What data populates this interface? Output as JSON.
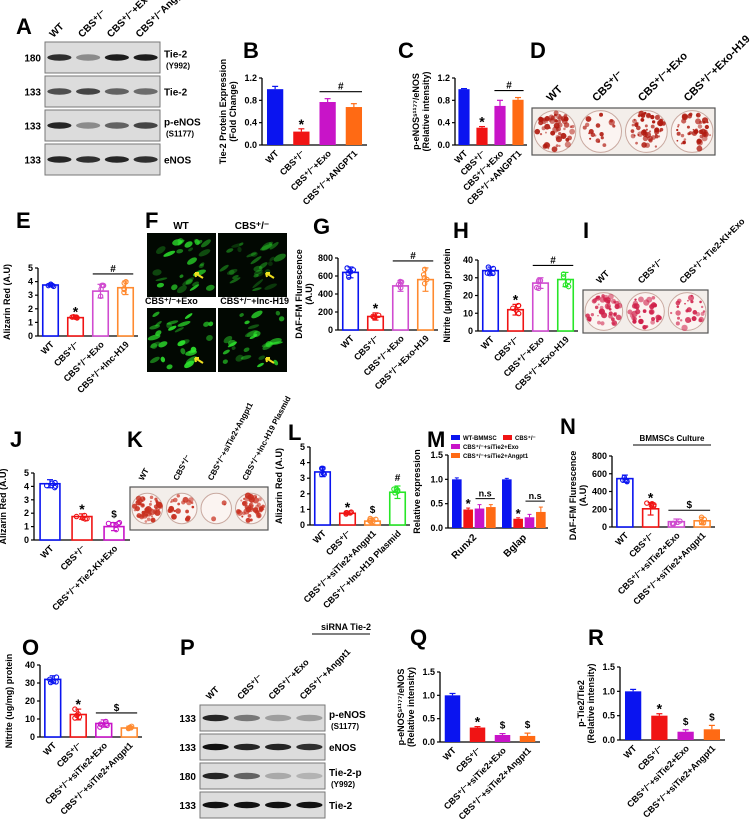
{
  "panel_letters": [
    "A",
    "B",
    "C",
    "D",
    "E",
    "F",
    "G",
    "H",
    "I",
    "J",
    "K",
    "L",
    "M",
    "N",
    "O",
    "P",
    "Q",
    "R"
  ],
  "colors": {
    "blue": "#0a14f0",
    "red": "#f01414",
    "magenta": "#c814c8",
    "orange": "#ff6a14",
    "green": "#28e628",
    "open_magenta": "#d04cd0",
    "open_orange": "#ff8a30"
  },
  "blots": [
    {
      "panel": "A",
      "lanes": [
        "WT",
        "CBS⁺/⁻",
        "CBS⁺/⁻+Exo",
        "CBS⁺/⁻Angpt1"
      ],
      "rows": [
        {
          "mw": "180",
          "label": "Tie-2",
          "sub": "(Y992)",
          "band_intensity": [
            0.85,
            0.4,
            0.95,
            0.95
          ]
        },
        {
          "mw": "133",
          "label": "Tie-2",
          "sub": "",
          "band_intensity": [
            0.7,
            0.75,
            0.6,
            0.55
          ]
        },
        {
          "mw": "133",
          "label": "p-eNOS",
          "sub": "(S1177)",
          "band_intensity": [
            0.9,
            0.4,
            0.6,
            0.75
          ]
        },
        {
          "mw": "133",
          "label": "eNOS",
          "sub": "",
          "band_intensity": [
            0.9,
            0.85,
            0.9,
            0.85
          ]
        }
      ]
    },
    {
      "panel": "P",
      "header": "siRNA Tie-2",
      "lanes": [
        "WT",
        "CBS⁺/⁻",
        "CBS⁺/⁻+Exo",
        "CBS⁺/⁻+Angpt1"
      ],
      "rows": [
        {
          "mw": "133",
          "label": "p-eNOS",
          "sub": "(S1177)",
          "band_intensity": [
            0.9,
            0.5,
            0.3,
            0.3
          ]
        },
        {
          "mw": "133",
          "label": "eNOS",
          "sub": "",
          "band_intensity": [
            1,
            0.9,
            0.9,
            0.85
          ]
        },
        {
          "mw": "180",
          "label": "Tie-2-p",
          "sub": "(Y992)",
          "band_intensity": [
            0.9,
            0.6,
            0.25,
            0.2
          ]
        },
        {
          "mw": "133",
          "label": "Tie-2",
          "sub": "",
          "band_intensity": [
            1,
            1,
            1,
            1
          ]
        }
      ]
    }
  ],
  "stain_images": [
    {
      "panel": "D",
      "labels": [
        "WT",
        "CBS⁺/⁻",
        "CBS⁺/⁻+Exo",
        "CBS⁺/⁻+Exo-H19"
      ],
      "stain_level": [
        0.85,
        0.3,
        0.85,
        0.8
      ],
      "stain_color": "#b01a10"
    },
    {
      "panel": "I",
      "labels": [
        "WT",
        "CBS⁺/⁻",
        "CBS⁺/⁻+Tie2-KI+Exo"
      ],
      "stain_level": [
        0.8,
        0.55,
        0.45
      ],
      "stain_color": "#d0204a"
    },
    {
      "panel": "K",
      "labels": [
        "WT",
        "CBS⁺/⁻",
        "CBS⁺/⁻+siTie2+Angpt1",
        "CBS⁺/⁻+lnc-H19 Plasmid"
      ],
      "stain_level": [
        0.9,
        0.35,
        0.05,
        0.75
      ],
      "stain_color": "#c83020"
    }
  ],
  "fluorescence": {
    "panel": "F",
    "tiles": [
      "WT",
      "CBS⁺/⁻",
      "CBS⁺/⁻+Exo",
      "CBS⁺/⁻+lnc-H19"
    ],
    "brightness": [
      0.85,
      0.45,
      0.9,
      0.85
    ]
  },
  "chart_data": [
    {
      "panel": "B",
      "type": "bar",
      "style": "filled",
      "categories": [
        "WT",
        "CBS⁺/⁻",
        "CBS⁺/⁻+Exo",
        "CBS⁺/⁻+ANGPT1"
      ],
      "values": [
        1.0,
        0.24,
        0.77,
        0.68
      ],
      "errors": [
        0.05,
        0.05,
        0.06,
        0.06
      ],
      "colors": [
        "#0a14f0",
        "#f01414",
        "#c814c8",
        "#ff6a14"
      ],
      "ylim": [
        0,
        1.2
      ],
      "yticks": [
        "0.0",
        "0.4",
        "0.8",
        "1.2"
      ],
      "ylabel": [
        "Tie-2 Protein Expression",
        "(Fold Change)"
      ],
      "annotations": [
        {
          "text": "*",
          "over": [
            1
          ]
        },
        {
          "text": "#",
          "over": [
            2,
            3
          ],
          "line": true
        }
      ]
    },
    {
      "panel": "C",
      "type": "bar",
      "style": "filled",
      "categories": [
        "WT",
        "CBS⁺/⁻",
        "CBS⁺/⁻+Exo",
        "CBS⁺/⁻+ANGPT1"
      ],
      "values": [
        1.0,
        0.31,
        0.7,
        0.81
      ],
      "errors": [
        0.01,
        0.02,
        0.1,
        0.04
      ],
      "colors": [
        "#0a14f0",
        "#f01414",
        "#c814c8",
        "#ff6a14"
      ],
      "ylim": [
        0,
        1.2
      ],
      "yticks": [
        "0.0",
        "0.4",
        "0.8",
        "1.2"
      ],
      "ylabel": [
        "p-eNOSˢ¹¹⁷⁷/eNOS",
        "(Relative intensity)"
      ],
      "annotations": [
        {
          "text": "*",
          "over": [
            1
          ]
        },
        {
          "text": "#",
          "over": [
            2,
            3
          ],
          "line": true
        }
      ]
    },
    {
      "panel": "E",
      "type": "bar",
      "style": "open",
      "categories": [
        "WT",
        "CBS⁺/⁻",
        "CBS⁺/⁻+Exo",
        "CBS⁺/⁻+lnc-H19"
      ],
      "values": [
        3.75,
        1.35,
        3.3,
        3.55
      ],
      "errors": [
        0.1,
        0.1,
        0.5,
        0.5
      ],
      "colors": [
        "#0a14f0",
        "#f01414",
        "#d04cd0",
        "#ff8a30"
      ],
      "ylim": [
        0,
        5
      ],
      "yticks": [
        "0",
        "1",
        "2",
        "3",
        "4",
        "5"
      ],
      "ylabel": [
        "Alizarin Red (A.U)"
      ],
      "annotations": [
        {
          "text": "*",
          "over": [
            1
          ]
        },
        {
          "text": "#",
          "over": [
            2,
            3
          ],
          "line": true
        }
      ]
    },
    {
      "panel": "G",
      "type": "bar",
      "style": "open",
      "categories": [
        "WT",
        "CBS⁺/⁻",
        "CBS⁺/⁻+Exo",
        "CBS⁺/⁻+Exo-H19"
      ],
      "values": [
        640,
        150,
        490,
        560
      ],
      "errors": [
        60,
        40,
        60,
        130
      ],
      "colors": [
        "#0a14f0",
        "#f01414",
        "#d04cd0",
        "#ff8a30"
      ],
      "ylim": [
        0,
        800
      ],
      "yticks": [
        "0",
        "200",
        "400",
        "600",
        "800"
      ],
      "ylabel": [
        "DAF-FM Flurescence",
        "(A.U)"
      ],
      "annotations": [
        {
          "text": "*",
          "over": [
            1
          ]
        },
        {
          "text": "#",
          "over": [
            2,
            3
          ],
          "line": true
        }
      ]
    },
    {
      "panel": "H",
      "type": "bar",
      "style": "open",
      "categories": [
        "WT",
        "CBS⁺/⁻",
        "CBS⁺/⁻+Exo",
        "CBS⁺/⁻+Exo-H19"
      ],
      "values": [
        34,
        12,
        27,
        29
      ],
      "errors": [
        2,
        3,
        3,
        4
      ],
      "colors": [
        "#0a14f0",
        "#f01414",
        "#d04cd0",
        "#28e628"
      ],
      "ylim": [
        0,
        40
      ],
      "yticks": [
        "0",
        "10",
        "20",
        "30",
        "40"
      ],
      "ylabel": [
        "Nitrite (µg/mg) protein"
      ],
      "annotations": [
        {
          "text": "*",
          "over": [
            1
          ]
        },
        {
          "text": "#",
          "over": [
            2,
            3
          ],
          "line": true
        }
      ]
    },
    {
      "panel": "J",
      "type": "bar",
      "style": "open",
      "categories": [
        "WT",
        "CBS⁺/⁻",
        "CBS⁺/⁻+Tie2-KI+Exo"
      ],
      "values": [
        4.2,
        1.75,
        1.0
      ],
      "errors": [
        0.3,
        0.2,
        0.3
      ],
      "colors": [
        "#0a14f0",
        "#f01414",
        "#c814c8"
      ],
      "ylim": [
        0,
        5
      ],
      "yticks": [
        "0",
        "1",
        "2",
        "3",
        "4",
        "5"
      ],
      "ylabel": [
        "Alizarin Red (A.U)"
      ],
      "annotations": [
        {
          "text": "*",
          "over": [
            1
          ]
        },
        {
          "text": "$",
          "over": [
            2
          ]
        }
      ]
    },
    {
      "panel": "L",
      "type": "bar",
      "style": "open",
      "categories": [
        "WT",
        "CBS⁺/⁻",
        "CBS⁺/⁻+siTie2+Angpt1",
        "CBS⁺/⁻+lnc-H19 Plasmid"
      ],
      "values": [
        3.4,
        0.75,
        0.25,
        2.1
      ],
      "errors": [
        0.3,
        0.08,
        0.2,
        0.4
      ],
      "colors": [
        "#0a14f0",
        "#f01414",
        "#ff8a30",
        "#28e628"
      ],
      "ylim": [
        0,
        5
      ],
      "yticks": [
        "0",
        "1",
        "2",
        "3",
        "4",
        "5"
      ],
      "ylabel": [
        "Alizarin Red (A.U)"
      ],
      "annotations": [
        {
          "text": "*",
          "over": [
            1
          ]
        },
        {
          "text": "$",
          "over": [
            2
          ]
        },
        {
          "text": "#",
          "over": [
            3
          ]
        }
      ]
    },
    {
      "panel": "M",
      "type": "bar",
      "style": "grouped",
      "categories": [
        "Runx2",
        "Bglap"
      ],
      "series": [
        {
          "name": "WT-BMMSC",
          "values": [
            1.0,
            1.0
          ],
          "errors": [
            0.03,
            0.02
          ],
          "color": "#0a14f0"
        },
        {
          "name": "CBS⁺/⁻",
          "values": [
            0.38,
            0.19
          ],
          "errors": [
            0.03,
            0.02
          ],
          "color": "#f01414"
        },
        {
          "name": "CBS⁺/⁻+siTie2+Exo",
          "values": [
            0.4,
            0.22
          ],
          "errors": [
            0.08,
            0.06
          ],
          "color": "#c814c8"
        },
        {
          "name": "CBS⁺/⁻+siTie2+Angpt1",
          "values": [
            0.43,
            0.33
          ],
          "errors": [
            0.05,
            0.1
          ],
          "color": "#ff6a14"
        }
      ],
      "ylim": [
        0,
        1.5
      ],
      "yticks": [
        "0.0",
        "0.5",
        "1.0",
        "1.5"
      ],
      "ylabel": [
        "Relative expression"
      ],
      "legend": "top",
      "annotations": [
        {
          "text": "*",
          "group": 0,
          "over": [
            1
          ]
        },
        {
          "text": "n.s",
          "group": 0,
          "over": [
            2,
            3
          ],
          "line": true
        },
        {
          "text": "*",
          "group": 1,
          "over": [
            1
          ]
        },
        {
          "text": "n.s",
          "group": 1,
          "over": [
            2,
            3
          ],
          "line": true
        }
      ]
    },
    {
      "panel": "N",
      "type": "bar",
      "style": "open",
      "title": "BMMSCs Culture",
      "categories": [
        "WT",
        "CBS⁺/⁻",
        "CBS⁺/⁻+siTie2+Exo",
        "CBS⁺/⁻+siTie2+Angpt1"
      ],
      "values": [
        545,
        205,
        60,
        70
      ],
      "errors": [
        40,
        70,
        30,
        40
      ],
      "colors": [
        "#0a14f0",
        "#f01414",
        "#d04cd0",
        "#ff8a30"
      ],
      "ylim": [
        0,
        800
      ],
      "yticks": [
        "0",
        "200",
        "400",
        "600",
        "800"
      ],
      "ylabel": [
        "DAF-FM Flurescence",
        "(A.U)"
      ],
      "annotations": [
        {
          "text": "*",
          "over": [
            1
          ]
        },
        {
          "text": "$",
          "over": [
            2,
            3
          ],
          "line": true
        }
      ]
    },
    {
      "panel": "O",
      "type": "bar",
      "style": "open",
      "categories": [
        "WT",
        "CBS⁺/⁻",
        "CBS⁺/⁻+siTie2+Exo",
        "CBS⁺/⁻+siTie2+Angpt1"
      ],
      "values": [
        32,
        12.5,
        7.5,
        5
      ],
      "errors": [
        2,
        3,
        2,
        1
      ],
      "colors": [
        "#0a14f0",
        "#f01414",
        "#c814c8",
        "#ff8a30"
      ],
      "ylim": [
        0,
        40
      ],
      "yticks": [
        "0",
        "10",
        "20",
        "30",
        "40"
      ],
      "ylabel": [
        "Nitrite (ug/mg) protein"
      ],
      "annotations": [
        {
          "text": "*",
          "over": [
            1
          ]
        },
        {
          "text": "$",
          "over": [
            2,
            3
          ],
          "line": true
        }
      ]
    },
    {
      "panel": "Q",
      "type": "bar",
      "style": "filled",
      "categories": [
        "WT",
        "CBS⁺/⁻",
        "CBS⁺/⁻+siTie2+Exo",
        "CBS⁺/⁻+siTie2+Angpt1"
      ],
      "values": [
        1.0,
        0.31,
        0.15,
        0.13
      ],
      "errors": [
        0.04,
        0.02,
        0.03,
        0.06
      ],
      "colors": [
        "#0a14f0",
        "#f01414",
        "#c814c8",
        "#ff6a14"
      ],
      "ylim": [
        0,
        1.5
      ],
      "yticks": [
        "0.0",
        "0.5",
        "1.0",
        "1.5"
      ],
      "ylabel": [
        "p-eNOSˢ¹¹⁷⁷/eNOS",
        "(Relative intensity)"
      ],
      "annotations": [
        {
          "text": "*",
          "over": [
            1
          ]
        },
        {
          "text": "$",
          "over": [
            2
          ]
        },
        {
          "text": "$",
          "over": [
            3
          ]
        }
      ]
    },
    {
      "panel": "R",
      "type": "bar",
      "style": "filled",
      "categories": [
        "WT",
        "CBS⁺/⁻",
        "CBS⁺/⁻+siTie2+Exo",
        "CBS⁺/⁻+siTie2+Angpt1"
      ],
      "values": [
        1.0,
        0.5,
        0.17,
        0.22
      ],
      "errors": [
        0.04,
        0.04,
        0.04,
        0.08
      ],
      "colors": [
        "#0a14f0",
        "#f01414",
        "#c814c8",
        "#ff6a14"
      ],
      "ylim": [
        0,
        1.5
      ],
      "yticks": [
        "0.0",
        "0.5",
        "1.0",
        "1.5"
      ],
      "ylabel": [
        "p-Tie2/Tie2",
        "(Relative intensity)"
      ],
      "annotations": [
        {
          "text": "*",
          "over": [
            1
          ]
        },
        {
          "text": "$",
          "over": [
            2
          ]
        },
        {
          "text": "$",
          "over": [
            3
          ]
        }
      ]
    }
  ]
}
